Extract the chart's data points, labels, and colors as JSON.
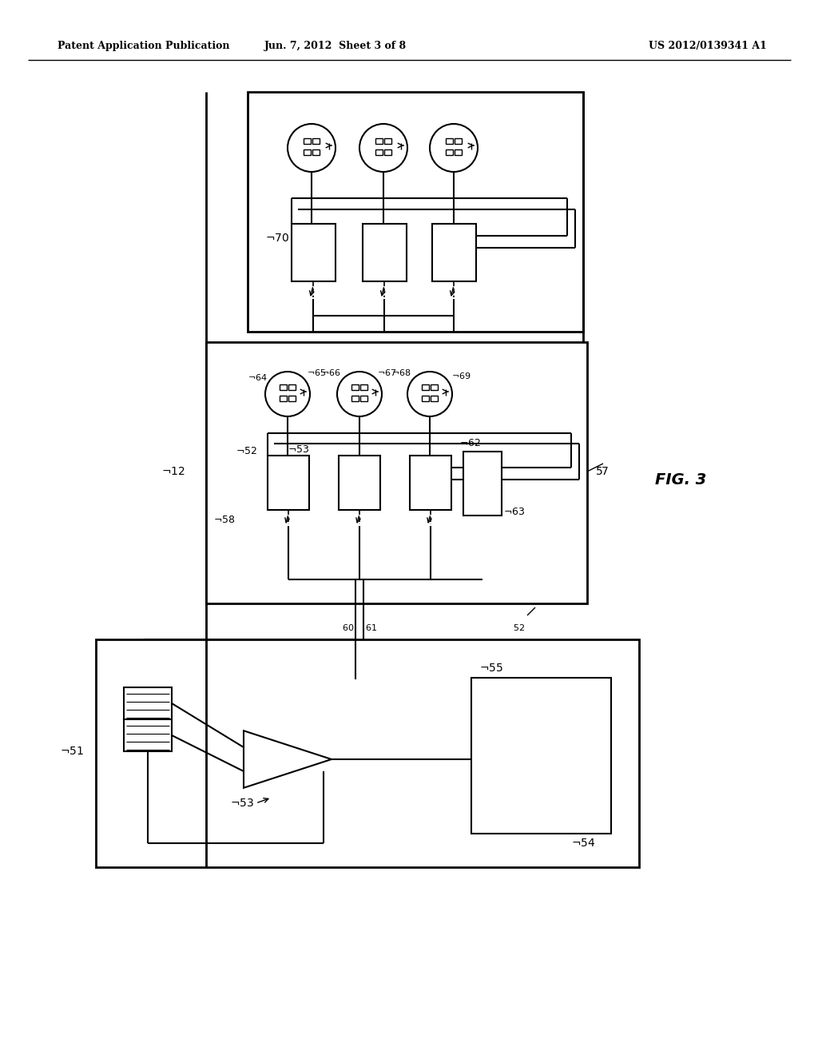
{
  "header_left": "Patent Application Publication",
  "header_center": "Jun. 7, 2012  Sheet 3 of 8",
  "header_right": "US 2012/0139341 A1",
  "fig_label": "FIG. 3",
  "background_color": "#ffffff",
  "line_color": "#000000"
}
